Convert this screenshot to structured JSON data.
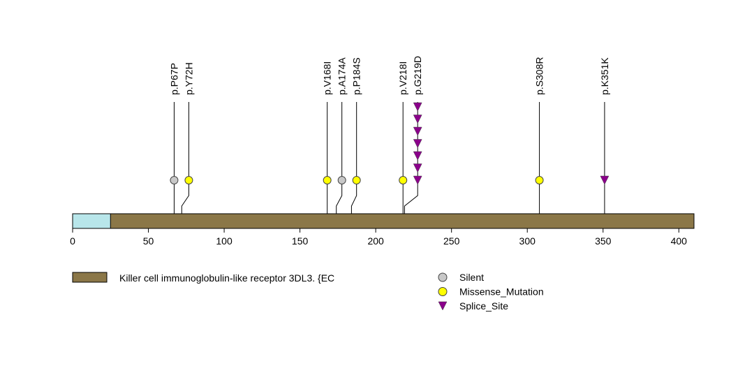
{
  "chart_data": {
    "type": "lollipop",
    "protein": {
      "length": 410,
      "name": "Killer cell immunoglobulin-like receptor 3DL3. {EC",
      "color": "#8b7748",
      "regions": [
        {
          "start": 0,
          "end": 25,
          "color": "#b8e6ea"
        }
      ]
    },
    "x_axis": {
      "range": [
        0,
        410
      ],
      "ticks": [
        0,
        50,
        100,
        150,
        200,
        250,
        300,
        350,
        400
      ],
      "tick_labels": [
        "0",
        "50",
        "100",
        "150",
        "200",
        "250",
        "300",
        "350",
        "400"
      ]
    },
    "mutations": [
      {
        "label": "p.P67P",
        "position": 67,
        "type": "Silent",
        "count": 1
      },
      {
        "label": "p.Y72H",
        "position": 72,
        "type": "Missense_Mutation",
        "count": 1
      },
      {
        "label": "p.V168I",
        "position": 168,
        "type": "Missense_Mutation",
        "count": 1
      },
      {
        "label": "p.A174A",
        "position": 174,
        "type": "Silent",
        "count": 1
      },
      {
        "label": "p.P184S",
        "position": 184,
        "type": "Missense_Mutation",
        "count": 1
      },
      {
        "label": "p.V218I",
        "position": 218,
        "type": "Missense_Mutation",
        "count": 1
      },
      {
        "label": "p.G219D",
        "position": 219,
        "type": "Splice_Site",
        "count": 7
      },
      {
        "label": "p.S308R",
        "position": 308,
        "type": "Missense_Mutation",
        "count": 1
      },
      {
        "label": "p.K351K",
        "position": 351,
        "type": "Splice_Site",
        "count": 1
      }
    ],
    "legend": [
      {
        "type": "Silent",
        "label": "Silent",
        "shape": "circle",
        "color": "#c8c8c8"
      },
      {
        "type": "Missense_Mutation",
        "label": "Missense_Mutation",
        "shape": "circle",
        "color": "#ffff00"
      },
      {
        "type": "Splice_Site",
        "label": "Splice_Site",
        "shape": "triangle",
        "color": "#8b008b"
      }
    ]
  }
}
